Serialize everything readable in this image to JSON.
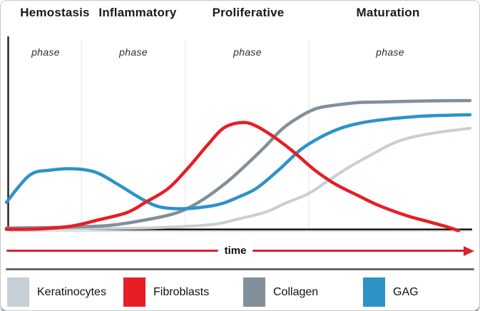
{
  "phases": {
    "phase_word": "phase",
    "headers": [
      {
        "label": "Hemostasis"
      },
      {
        "label": "Inflammatory"
      },
      {
        "label": "Proliferative"
      },
      {
        "label": "Maturation"
      }
    ]
  },
  "time_axis": {
    "label": "time",
    "color": "#d8242b"
  },
  "legend": {
    "items": [
      {
        "label": "Keratinocytes",
        "color": "#c6cfd6"
      },
      {
        "label": "Fibroblasts",
        "color": "#e61e25"
      },
      {
        "label": "Collagen",
        "color": "#828f99"
      },
      {
        "label": "GAG",
        "color": "#2c93c7"
      }
    ]
  },
  "colors": {
    "axis": "#1d1d1d",
    "phase_divider": "#ececec",
    "axis_shadow": "#d9d9d9"
  },
  "chart_data": {
    "type": "line",
    "title": "",
    "xlabel": "time",
    "ylabel": "",
    "x_axis": "relative time 0-100 (qualitative, no numeric ticks shown)",
    "ylim": [
      0,
      1
    ],
    "grid": false,
    "legend_position": "bottom",
    "phase_boundaries_t": [
      16.2,
      38.6,
      65.2
    ],
    "phase_spans_t": [
      [
        0,
        16.2
      ],
      [
        16.2,
        38.6
      ],
      [
        38.6,
        65.2
      ],
      [
        65.2,
        100
      ]
    ],
    "series": [
      {
        "name": "Keratinocytes",
        "color": "#c6cfd6",
        "width": 4,
        "t": [
          0,
          17,
          29.5,
          37,
          45,
          50,
          56,
          60,
          65,
          69.5,
          74,
          79,
          83.5,
          88,
          93.5,
          100
        ],
        "v": [
          0.0,
          0.003,
          0.01,
          0.02,
          0.04,
          0.08,
          0.135,
          0.2,
          0.275,
          0.38,
          0.485,
          0.585,
          0.67,
          0.72,
          0.755,
          0.785
        ]
      },
      {
        "name": "Collagen",
        "color": "#828f99",
        "width": 4.5,
        "t": [
          0,
          11,
          22,
          29.5,
          36,
          40,
          44,
          48,
          52,
          56,
          59.5,
          63.5,
          67,
          71,
          76,
          82,
          91,
          100
        ],
        "v": [
          0.01,
          0.015,
          0.03,
          0.07,
          0.12,
          0.18,
          0.27,
          0.38,
          0.51,
          0.65,
          0.78,
          0.88,
          0.94,
          0.965,
          0.985,
          0.99,
          0.997,
          1.0
        ]
      },
      {
        "name": "GAG",
        "color": "#2c93c7",
        "width": 4.5,
        "t": [
          0,
          5,
          9.5,
          15,
          19.5,
          24,
          29,
          33,
          38,
          43,
          46.5,
          50,
          54,
          59,
          63.5,
          68,
          72.5,
          77,
          82,
          88,
          94,
          100
        ],
        "v": [
          0.21,
          0.42,
          0.46,
          0.47,
          0.44,
          0.35,
          0.24,
          0.175,
          0.16,
          0.175,
          0.2,
          0.25,
          0.32,
          0.47,
          0.62,
          0.72,
          0.79,
          0.83,
          0.855,
          0.875,
          0.885,
          0.89
        ]
      },
      {
        "name": "Fibroblasts",
        "color": "#e61e25",
        "width": 4.5,
        "t": [
          0,
          7,
          14,
          20,
          26,
          30,
          35,
          39.5,
          43.5,
          47,
          51,
          54,
          58,
          62,
          66.5,
          71,
          76,
          80,
          86,
          91,
          95,
          97.5
        ],
        "v": [
          0.0,
          0.003,
          0.025,
          0.075,
          0.13,
          0.21,
          0.32,
          0.49,
          0.66,
          0.79,
          0.83,
          0.8,
          0.71,
          0.6,
          0.46,
          0.35,
          0.26,
          0.19,
          0.11,
          0.06,
          0.02,
          -0.01
        ]
      }
    ]
  }
}
